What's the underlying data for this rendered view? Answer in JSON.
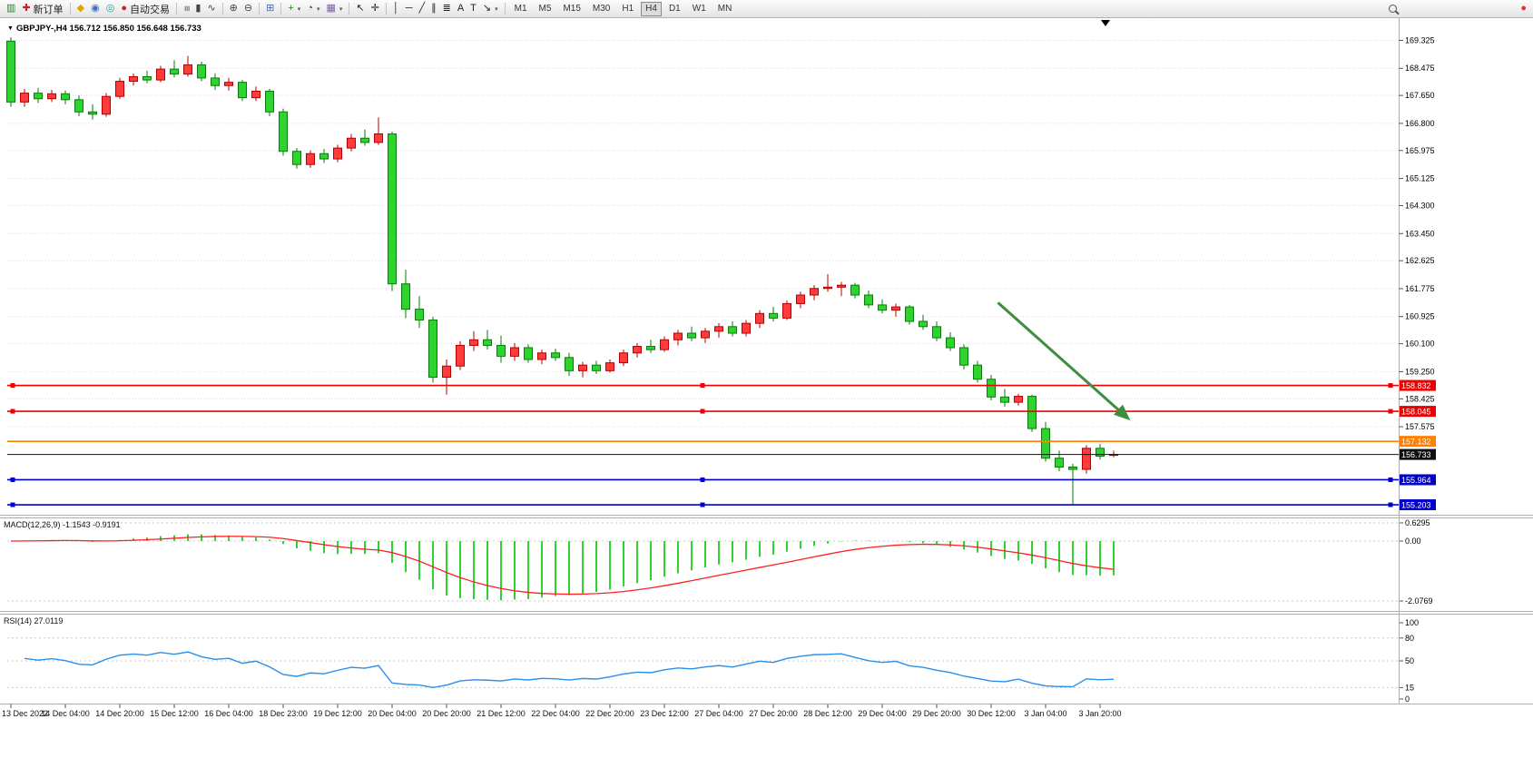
{
  "toolbar": {
    "groups": [
      {
        "items": [
          {
            "name": "new-chart-button",
            "icon": "new-chart-icon",
            "glyph": "▥",
            "color": "#2e7d32"
          },
          {
            "name": "new-order-button",
            "icon": "new-order-icon",
            "glyph": "✚",
            "color": "#cc2222",
            "label": "新订单"
          }
        ]
      },
      {
        "items": [
          {
            "name": "mql5-button",
            "icon": "mql5-icon",
            "glyph": "◆",
            "color": "#e0a400"
          },
          {
            "name": "community-button",
            "icon": "community-icon",
            "glyph": "◉",
            "color": "#3b6fb5"
          },
          {
            "name": "signals-button",
            "icon": "signals-icon",
            "glyph": "◎",
            "color": "#1fa0a0"
          },
          {
            "name": "autotrading-button",
            "icon": "autotrading-icon",
            "glyph": "●",
            "color": "#d22020",
            "label": "自动交易"
          }
        ]
      },
      {
        "items": [
          {
            "name": "bar-chart-button",
            "icon": "bar-chart-icon",
            "glyph": "≡",
            "color": "#444",
            "rot90": true
          },
          {
            "name": "candlestick-chart-button",
            "icon": "candlestick-chart-icon",
            "glyph": "▮",
            "color": "#444"
          },
          {
            "name": "line-chart-button",
            "icon": "line-chart-icon",
            "glyph": "∿",
            "color": "#444"
          }
        ]
      },
      {
        "items": [
          {
            "name": "zoom-in-button",
            "icon": "zoom-in-icon",
            "glyph": "⊕",
            "color": "#444"
          },
          {
            "name": "zoom-out-button",
            "icon": "zoom-out-icon",
            "glyph": "⊖",
            "color": "#444"
          }
        ]
      },
      {
        "items": [
          {
            "name": "tile-windows-button",
            "icon": "tile-windows-icon",
            "glyph": "⊞",
            "color": "#3b6fb5"
          }
        ]
      },
      {
        "items": [
          {
            "name": "indicators-button",
            "icon": "indicators-icon",
            "glyph": "+",
            "color": "#2e7d32",
            "caret": true
          },
          {
            "name": "periods-button",
            "icon": "periods-icon",
            "glyph": "◔",
            "color": "#444",
            "caret": true
          },
          {
            "name": "templates-button",
            "icon": "templates-icon",
            "glyph": "▦",
            "color": "#7a5ca8",
            "caret": true
          }
        ]
      },
      {
        "items": [
          {
            "name": "cursor-button",
            "icon": "cursor-icon",
            "glyph": "↖",
            "color": "#222"
          },
          {
            "name": "crosshair-button",
            "icon": "crosshair-icon",
            "glyph": "✛",
            "color": "#222"
          }
        ]
      },
      {
        "items": [
          {
            "name": "vertical-line-button",
            "icon": "vertical-line-icon",
            "glyph": "│",
            "color": "#222"
          },
          {
            "name": "horizontal-line-button",
            "icon": "horizontal-line-icon",
            "glyph": "─",
            "color": "#222"
          },
          {
            "name": "trendline-button",
            "icon": "trendline-icon",
            "glyph": "╱",
            "color": "#222"
          },
          {
            "name": "channel-button",
            "icon": "channel-icon",
            "glyph": "∥",
            "color": "#222"
          },
          {
            "name": "fibonacci-button",
            "icon": "fibonacci-icon",
            "glyph": "≣",
            "color": "#222"
          },
          {
            "name": "text-button",
            "icon": "text-icon",
            "glyph": "A",
            "color": "#222"
          },
          {
            "name": "text-label-button",
            "icon": "text-label-icon",
            "glyph": "T",
            "color": "#222"
          },
          {
            "name": "arrows-button",
            "icon": "arrows-icon",
            "glyph": "↘",
            "color": "#222",
            "caret": true
          }
        ]
      }
    ],
    "timeframes": {
      "labels": [
        "M1",
        "M5",
        "M15",
        "M30",
        "H1",
        "H4",
        "D1",
        "W1",
        "MN"
      ],
      "active": "H4"
    },
    "right_items": [
      {
        "name": "search-button",
        "icon": "search-icon",
        "shape": "magnifier"
      },
      {
        "name": "alert-badge",
        "icon": "alert-icon",
        "glyph": "●",
        "color": "#e03030"
      }
    ]
  },
  "chart": {
    "symbol_line": "GBPJPY-,H4 156.712 156.850 156.648 156.733"
  },
  "macd": {
    "title": "MACD(12,26,9)",
    "values": "-1.1543 -0.9191"
  },
  "rsi": {
    "title": "RSI(14)",
    "value": "27.0119"
  },
  "chart_data": {
    "type": "candlestick",
    "symbol": "GBPJPY-",
    "timeframe": "H4",
    "last_quote": {
      "open": 156.712,
      "high": 156.85,
      "low": 156.648,
      "close": 156.733
    },
    "price_range": [
      154.9,
      170.0
    ],
    "price_ticks": [
      169.325,
      168.475,
      167.65,
      166.8,
      165.975,
      165.125,
      164.3,
      163.45,
      162.625,
      161.775,
      160.925,
      160.1,
      159.25,
      158.425,
      157.575
    ],
    "up_color": "#ff3b3b",
    "up_border": "#b40000",
    "down_color": "#2fd32f",
    "down_border": "#067d06",
    "ohlc": [
      [
        169.3,
        169.42,
        167.3,
        167.45
      ],
      [
        167.45,
        167.85,
        167.3,
        167.72
      ],
      [
        167.72,
        167.88,
        167.42,
        167.55
      ],
      [
        167.55,
        167.82,
        167.45,
        167.7
      ],
      [
        167.7,
        167.8,
        167.38,
        167.52
      ],
      [
        167.52,
        167.65,
        167.02,
        167.15
      ],
      [
        167.15,
        167.38,
        166.92,
        167.08
      ],
      [
        167.08,
        167.72,
        167.0,
        167.62
      ],
      [
        167.62,
        168.18,
        167.55,
        168.08
      ],
      [
        168.08,
        168.32,
        167.95,
        168.22
      ],
      [
        168.22,
        168.4,
        168.02,
        168.12
      ],
      [
        168.12,
        168.55,
        168.05,
        168.45
      ],
      [
        168.45,
        168.72,
        168.2,
        168.3
      ],
      [
        168.3,
        168.85,
        168.22,
        168.58
      ],
      [
        168.58,
        168.68,
        168.08,
        168.18
      ],
      [
        168.18,
        168.32,
        167.82,
        167.95
      ],
      [
        167.95,
        168.18,
        167.8,
        168.05
      ],
      [
        168.05,
        168.12,
        167.48,
        167.58
      ],
      [
        167.58,
        167.92,
        167.48,
        167.78
      ],
      [
        167.78,
        167.85,
        167.02,
        167.15
      ],
      [
        167.15,
        167.25,
        165.82,
        165.95
      ],
      [
        165.95,
        166.05,
        165.42,
        165.55
      ],
      [
        165.55,
        165.98,
        165.45,
        165.88
      ],
      [
        165.88,
        166.02,
        165.6,
        165.72
      ],
      [
        165.72,
        166.15,
        165.62,
        166.05
      ],
      [
        166.05,
        166.48,
        165.95,
        166.35
      ],
      [
        166.35,
        166.62,
        166.12,
        166.22
      ],
      [
        166.22,
        166.98,
        166.15,
        166.48
      ],
      [
        166.48,
        166.55,
        161.7,
        161.92
      ],
      [
        161.92,
        162.35,
        160.88,
        161.15
      ],
      [
        161.15,
        161.55,
        160.58,
        160.82
      ],
      [
        160.82,
        160.92,
        158.92,
        159.08
      ],
      [
        159.08,
        159.62,
        158.55,
        159.42
      ],
      [
        159.42,
        160.18,
        159.3,
        160.05
      ],
      [
        160.05,
        160.48,
        159.88,
        160.22
      ],
      [
        160.22,
        160.52,
        159.92,
        160.05
      ],
      [
        160.05,
        160.35,
        159.52,
        159.72
      ],
      [
        159.72,
        160.12,
        159.58,
        159.98
      ],
      [
        159.98,
        160.08,
        159.52,
        159.62
      ],
      [
        159.62,
        159.92,
        159.48,
        159.82
      ],
      [
        159.82,
        159.95,
        159.58,
        159.68
      ],
      [
        159.68,
        159.82,
        159.12,
        159.28
      ],
      [
        159.28,
        159.55,
        159.08,
        159.45
      ],
      [
        159.45,
        159.58,
        159.18,
        159.28
      ],
      [
        159.28,
        159.62,
        159.22,
        159.52
      ],
      [
        159.52,
        159.92,
        159.42,
        159.82
      ],
      [
        159.82,
        160.12,
        159.68,
        160.02
      ],
      [
        160.02,
        160.22,
        159.82,
        159.92
      ],
      [
        159.92,
        160.32,
        159.85,
        160.22
      ],
      [
        160.22,
        160.52,
        160.05,
        160.42
      ],
      [
        160.42,
        160.62,
        160.18,
        160.28
      ],
      [
        160.28,
        160.58,
        160.12,
        160.48
      ],
      [
        160.48,
        160.72,
        160.28,
        160.62
      ],
      [
        160.62,
        160.78,
        160.32,
        160.42
      ],
      [
        160.42,
        160.82,
        160.32,
        160.72
      ],
      [
        160.72,
        161.12,
        160.58,
        161.02
      ],
      [
        161.02,
        161.22,
        160.78,
        160.88
      ],
      [
        160.88,
        161.42,
        160.82,
        161.32
      ],
      [
        161.32,
        161.68,
        161.18,
        161.58
      ],
      [
        161.58,
        161.88,
        161.42,
        161.78
      ],
      [
        161.78,
        162.22,
        161.68,
        161.82
      ],
      [
        161.82,
        161.98,
        161.55,
        161.88
      ],
      [
        161.88,
        161.95,
        161.48,
        161.58
      ],
      [
        161.58,
        161.72,
        161.18,
        161.28
      ],
      [
        161.28,
        161.45,
        161.02,
        161.12
      ],
      [
        161.12,
        161.32,
        160.92,
        161.22
      ],
      [
        161.22,
        161.28,
        160.68,
        160.78
      ],
      [
        160.78,
        160.98,
        160.52,
        160.62
      ],
      [
        160.62,
        160.78,
        160.18,
        160.28
      ],
      [
        160.28,
        160.45,
        159.88,
        159.98
      ],
      [
        159.98,
        160.08,
        159.32,
        159.45
      ],
      [
        159.45,
        159.58,
        158.92,
        159.02
      ],
      [
        159.02,
        159.15,
        158.38,
        158.48
      ],
      [
        158.48,
        158.72,
        158.18,
        158.32
      ],
      [
        158.32,
        158.58,
        158.22,
        158.5
      ],
      [
        158.5,
        158.55,
        157.42,
        157.52
      ],
      [
        157.52,
        157.72,
        156.52,
        156.62
      ],
      [
        156.62,
        156.85,
        156.22,
        156.35
      ],
      [
        156.35,
        156.45,
        155.18,
        156.28
      ],
      [
        156.28,
        157.02,
        156.15,
        156.92
      ],
      [
        156.92,
        157.05,
        156.58,
        156.68
      ],
      [
        156.712,
        156.85,
        156.648,
        156.733
      ]
    ],
    "bar_time_labels": [
      "13 Dec 2022",
      "14 Dec 04:00",
      "14 Dec 20:00",
      "15 Dec 12:00",
      "16 Dec 04:00",
      "18 Dec 23:00",
      "19 Dec 12:00",
      "20 Dec 04:00",
      "20 Dec 20:00",
      "21 Dec 12:00",
      "22 Dec 04:00",
      "22 Dec 20:00",
      "23 Dec 12:00",
      "27 Dec 04:00",
      "27 Dec 20:00",
      "28 Dec 12:00",
      "29 Dec 04:00",
      "29 Dec 20:00",
      "30 Dec 12:00",
      "3 Jan 04:00",
      "3 Jan 20:00"
    ],
    "label_every_bars": 4,
    "hlines": [
      {
        "price": 158.832,
        "color": "#ee0000",
        "selected": true
      },
      {
        "price": 158.045,
        "color": "#ee0000",
        "selected": true
      },
      {
        "price": 157.132,
        "color": "#ff8000",
        "selected": false
      },
      {
        "price": 156.733,
        "color": "#101010",
        "selected": false,
        "role": "current-price"
      },
      {
        "price": 155.964,
        "color": "#0000cd",
        "selected": true
      },
      {
        "price": 155.203,
        "color": "#0000cd",
        "selected": true
      }
    ],
    "trend_arrow": {
      "from_bar": 72.5,
      "from_price": 161.35,
      "to_bar": 82,
      "to_price": 157.85,
      "color": "#3e8e3e"
    },
    "macd": {
      "params": "12,26,9",
      "main": -1.1543,
      "signal": -0.9191,
      "scale_labels": [
        {
          "value": 0.6295,
          "text": "0.6295"
        },
        {
          "value": 0,
          "text": "0.00"
        },
        {
          "value": -2.0769,
          "text": "-2.0769"
        }
      ],
      "hist_color": "#2fd32f",
      "signal_color": "#ff2020"
    },
    "rsi": {
      "period": 14,
      "value": 27.0119,
      "levels": [
        100,
        80,
        50,
        15,
        0
      ],
      "dotted_levels": [
        80,
        50,
        15
      ],
      "line_color": "#2a8fe8"
    }
  }
}
